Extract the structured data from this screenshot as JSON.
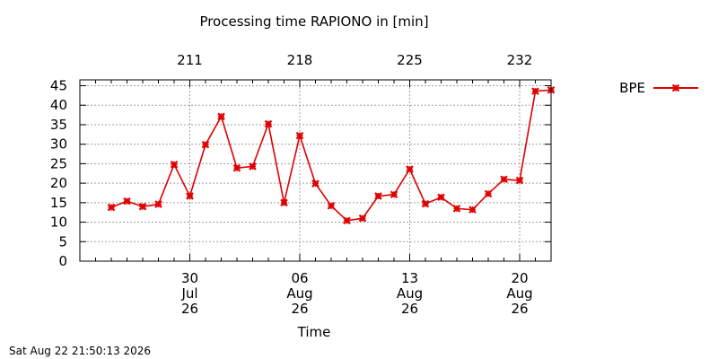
{
  "chart_data": {
    "type": "line",
    "title": "Processing time RAPIONO in [min]",
    "xlabel": "Time",
    "ylabel": "",
    "ylim": [
      0,
      46.5
    ],
    "xlim": [
      "2026-07-23",
      "2026-08-22"
    ],
    "yticks": [
      0,
      5,
      10,
      15,
      20,
      25,
      30,
      35,
      40,
      45
    ],
    "x_ticks": [
      {
        "date": "2026-07-30",
        "day": "30",
        "month": "Jul",
        "year": "26"
      },
      {
        "date": "2026-08-06",
        "day": "06",
        "month": "Aug",
        "year": "26"
      },
      {
        "date": "2026-08-13",
        "day": "13",
        "month": "Aug",
        "year": "26"
      },
      {
        "date": "2026-08-20",
        "day": "20",
        "month": "Aug",
        "year": "26"
      }
    ],
    "top_axis_ticks": [
      {
        "date": "2026-07-30",
        "label": "211"
      },
      {
        "date": "2026-08-06",
        "label": "218"
      },
      {
        "date": "2026-08-13",
        "label": "225"
      },
      {
        "date": "2026-08-20",
        "label": "232"
      }
    ],
    "grid": true,
    "legend_position": "right",
    "series": [
      {
        "name": "BPE",
        "color": "#e00000",
        "x": [
          "2026-07-25",
          "2026-07-26",
          "2026-07-27",
          "2026-07-28",
          "2026-07-29",
          "2026-07-30",
          "2026-07-31",
          "2026-08-01",
          "2026-08-02",
          "2026-08-03",
          "2026-08-04",
          "2026-08-05",
          "2026-08-06",
          "2026-08-07",
          "2026-08-08",
          "2026-08-09",
          "2026-08-10",
          "2026-08-11",
          "2026-08-12",
          "2026-08-13",
          "2026-08-14",
          "2026-08-15",
          "2026-08-16",
          "2026-08-17",
          "2026-08-18",
          "2026-08-19",
          "2026-08-20",
          "2026-08-21",
          "2026-08-22"
        ],
        "values": [
          13.8,
          15.4,
          14.0,
          14.6,
          24.8,
          16.7,
          29.9,
          37.1,
          23.9,
          24.3,
          35.2,
          15.0,
          32.2,
          19.9,
          14.2,
          10.4,
          11.0,
          16.7,
          17.1,
          23.6,
          14.7,
          16.4,
          13.5,
          13.2,
          17.3,
          21.0,
          20.7,
          43.6,
          43.9
        ]
      }
    ]
  },
  "footer": {
    "timestamp": "Sat Aug 22 21:50:13 2026"
  }
}
